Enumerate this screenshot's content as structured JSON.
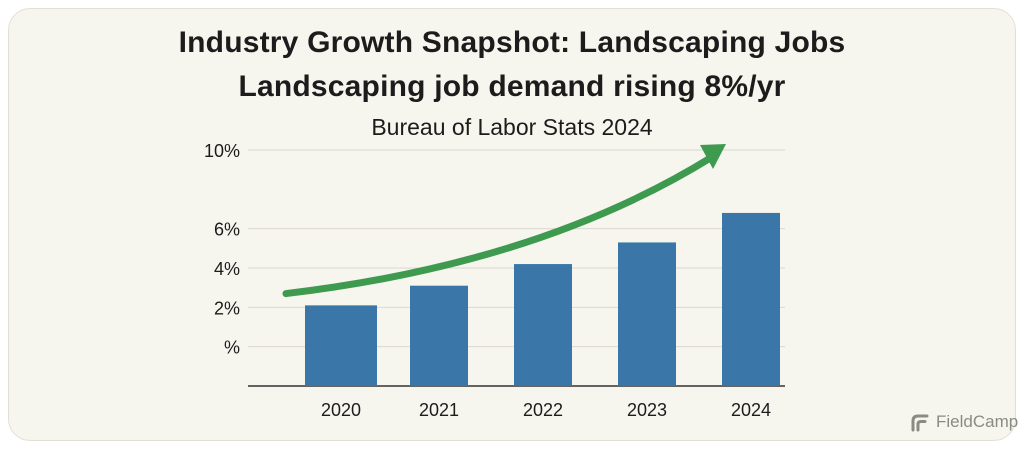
{
  "title": "Industry Growth Snapshot: Landscaping Jobs",
  "subtitle": "Landscaping job demand rising 8%/yr",
  "source": "Bureau of Labor Stats 2024",
  "brand": {
    "name": "FieldCamp",
    "icon": "fieldcamp-logo-icon"
  },
  "colors": {
    "bar": "#3a76a8",
    "arrow": "#3e9a4f",
    "grid": "#dad9d0",
    "axis": "#333333",
    "background": "#f6f5ee"
  },
  "chart_data": {
    "type": "bar",
    "title": "Industry Growth Snapshot: Landscaping Jobs",
    "subtitle": "Landscaping job demand rising 8%/yr",
    "caption": "Bureau of Labor Stats 2024",
    "categories": [
      "2020",
      "2021",
      "2022",
      "2023",
      "2024"
    ],
    "values": [
      2.1,
      3.1,
      4.2,
      5.3,
      6.8
    ],
    "unit": "%",
    "ylim": [
      -2,
      10
    ],
    "yticks": [
      {
        "value": 10,
        "label": "10%"
      },
      {
        "value": 6,
        "label": "6%"
      },
      {
        "value": 4,
        "label": "4%"
      },
      {
        "value": 2,
        "label": "2%"
      },
      {
        "value": 0,
        "label": "%"
      }
    ],
    "grid": true,
    "trend_arrow": {
      "from": 2.7,
      "to": 10.0,
      "direction": "up"
    },
    "xlabel": "",
    "ylabel": ""
  }
}
